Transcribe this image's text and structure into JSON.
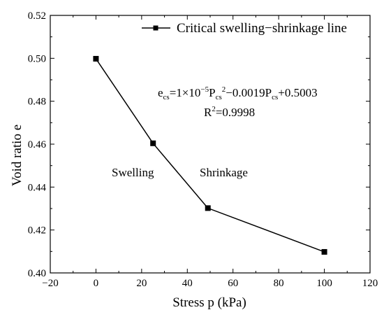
{
  "chart_data": {
    "type": "line",
    "xlabel": "Stress p (kPa)",
    "ylabel": "Void ratio e",
    "xlim": [
      -20,
      120
    ],
    "ylim": [
      0.4,
      0.52
    ],
    "xticks": [
      -20,
      0,
      20,
      40,
      60,
      80,
      100,
      120
    ],
    "yticks": [
      0.4,
      0.42,
      0.44,
      0.46,
      0.48,
      0.5,
      0.52
    ],
    "x_tick_labels": [
      "−20",
      "0",
      "20",
      "40",
      "60",
      "80",
      "100",
      "120"
    ],
    "y_tick_labels": [
      "0.40",
      "0.42",
      "0.44",
      "0.46",
      "0.48",
      "0.50",
      "0.52"
    ],
    "grid": false,
    "legend_position": "top-right",
    "series": [
      {
        "name": "Critical swelling−shrinkage line",
        "marker": "square",
        "color": "#000000",
        "x": [
          0,
          25,
          49,
          100
        ],
        "y": [
          0.4998,
          0.4604,
          0.4302,
          0.4098
        ]
      }
    ],
    "annotations": {
      "swelling": "Swelling",
      "shrinkage": "Shrinkage",
      "equation": {
        "e": "e",
        "cs1": "cs",
        "eq_part1": "=1×10",
        "exp": "−5",
        "P1": "P",
        "cs2": "cs",
        "sq": "2",
        "eq_part2": "−0.0019P",
        "cs3": "cs",
        "eq_part3": "+0.5003"
      },
      "r2": {
        "R": "R",
        "sup": "2",
        "value": "=0.9998"
      }
    }
  }
}
